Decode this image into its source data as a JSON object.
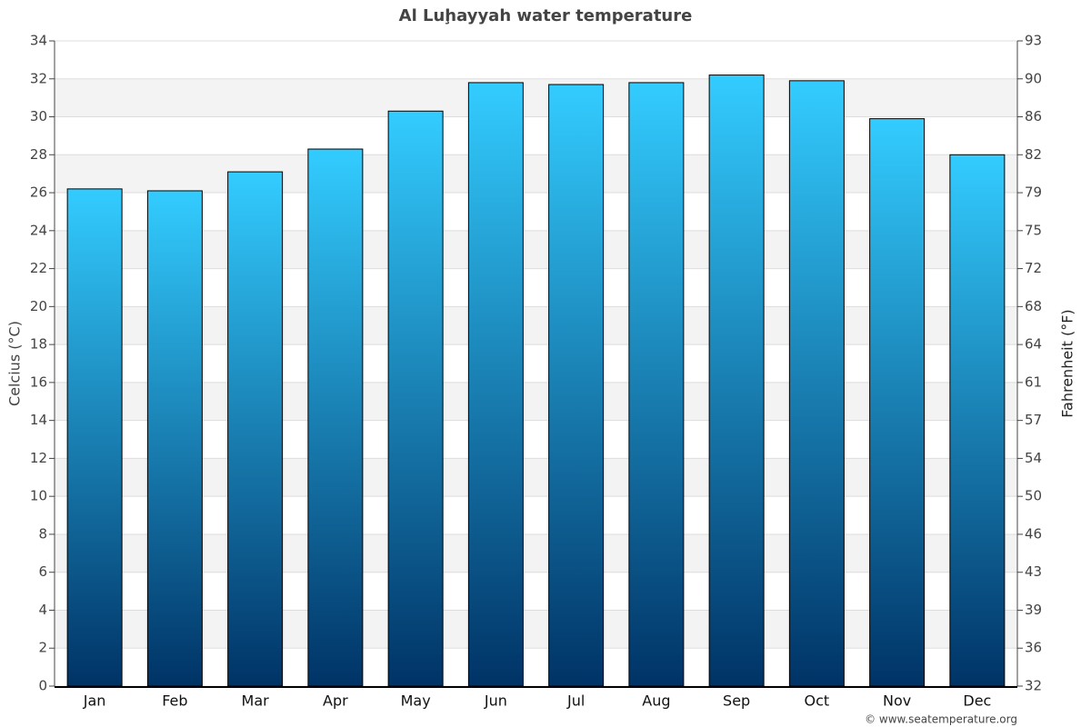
{
  "chart_data": {
    "type": "bar",
    "title": "Al Luḩayyah water temperature",
    "categories": [
      "Jan",
      "Feb",
      "Mar",
      "Apr",
      "May",
      "Jun",
      "Jul",
      "Aug",
      "Sep",
      "Oct",
      "Nov",
      "Dec"
    ],
    "values": [
      26.2,
      26.1,
      27.1,
      28.3,
      30.3,
      31.8,
      31.7,
      31.8,
      32.2,
      31.9,
      29.9,
      28.0
    ],
    "color_top": "#33ccff",
    "color_bottom": "#003366",
    "ylabel": "Celcius (°C)",
    "y2label": "Fahrenheit (°F)",
    "ylim": [
      0,
      34
    ],
    "yticks": [
      0,
      2,
      4,
      6,
      8,
      10,
      12,
      14,
      16,
      18,
      20,
      22,
      24,
      26,
      28,
      30,
      32,
      34
    ],
    "y2lim": [
      32,
      93.2
    ],
    "y2ticks": [
      32,
      {
        "value": 35.6,
        "label": "36"
      },
      {
        "value": 39.2,
        "label": "39"
      },
      {
        "value": 42.8,
        "label": "43"
      },
      {
        "value": 46.4,
        "label": "46"
      },
      50,
      {
        "value": 53.6,
        "label": "54"
      },
      {
        "value": 57.2,
        "label": "57"
      },
      {
        "value": 60.8,
        "label": "61"
      },
      {
        "value": 64.4,
        "label": "64"
      },
      68,
      {
        "value": 71.6,
        "label": "72"
      },
      {
        "value": 75.2,
        "label": "75"
      },
      {
        "value": 78.8,
        "label": "79"
      },
      {
        "value": 82.4,
        "label": "82"
      },
      86,
      {
        "value": 89.6,
        "label": "90"
      },
      {
        "value": 93.2,
        "label": "93"
      }
    ],
    "grid": true,
    "credit": "© www.seatemperature.org"
  }
}
